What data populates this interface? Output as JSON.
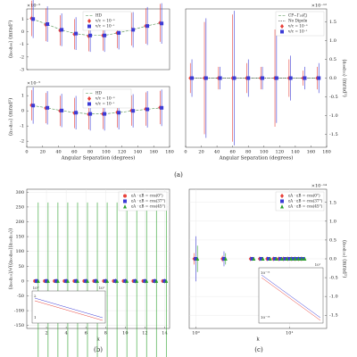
{
  "captions": [
    "(a)",
    "(b)",
    "(c)"
  ],
  "chart_data": [
    {
      "type": "scatter",
      "y_label": "⟨a₀₀a₀₀⟩ (mrad²)",
      "y_multiplier": "×10⁻⁵",
      "xlim": [
        0,
        180
      ],
      "ylim": [
        -3,
        1.8
      ],
      "yticks": [
        -3,
        -2,
        -1,
        0,
        1
      ],
      "y_axis_side": "left",
      "legend": "upper center",
      "x": [
        7,
        25,
        43,
        61,
        79,
        97,
        115,
        133,
        151,
        169
      ],
      "series": [
        {
          "name": "HD",
          "kind": "line",
          "color": "#4f8f4f",
          "values": [
            1.0,
            0.6,
            0.15,
            -0.15,
            -0.3,
            -0.3,
            -0.1,
            0.15,
            0.45,
            0.7
          ]
        },
        {
          "name": "v/c = 10⁻³",
          "color": "#e8413a",
          "marker": "diamond",
          "values": [
            1.05,
            0.55,
            0.1,
            -0.2,
            -0.35,
            -0.3,
            -0.1,
            0.2,
            0.45,
            0.7
          ],
          "errors": [
            1.4,
            1.3,
            1.2,
            1.2,
            1.2,
            1.2,
            1.2,
            1.3,
            1.4,
            1.5
          ]
        },
        {
          "name": "v/c = 10⁻¹",
          "color": "#3b3bd6",
          "marker": "square",
          "values": [
            1.0,
            0.6,
            0.15,
            -0.15,
            -0.3,
            -0.3,
            -0.1,
            0.15,
            0.45,
            0.65
          ],
          "errors": [
            1.5,
            1.4,
            1.3,
            1.3,
            1.3,
            1.3,
            1.3,
            1.4,
            1.5,
            1.6
          ]
        }
      ]
    },
    {
      "type": "scatter",
      "y_label": "⟨a₁₀a₁₀⟩ (mrad²)",
      "y_multiplier": "×10⁻⁵",
      "x_label": "Angular Separation (degrees)",
      "xlim": [
        0,
        180
      ],
      "xticks": [
        0,
        20,
        40,
        60,
        80,
        100,
        120,
        140,
        160,
        180
      ],
      "ylim": [
        -2.4,
        1.6
      ],
      "yticks": [
        -2,
        -1,
        0,
        1
      ],
      "y_axis_side": "left",
      "legend": "upper center",
      "x": [
        7,
        25,
        43,
        61,
        79,
        97,
        115,
        133,
        151,
        169
      ],
      "series": [
        {
          "name": "HD",
          "kind": "line",
          "color": "#4f8f4f",
          "values": [
            0.35,
            0.2,
            0.02,
            -0.12,
            -0.2,
            -0.2,
            -0.12,
            0.0,
            0.1,
            0.2
          ]
        },
        {
          "name": "v/c = 10⁻³",
          "color": "#e8413a",
          "marker": "diamond",
          "values": [
            0.37,
            0.18,
            0.0,
            -0.14,
            -0.22,
            -0.2,
            -0.1,
            0.02,
            0.12,
            0.22
          ],
          "errors": [
            1.0,
            1.0,
            1.0,
            1.0,
            1.0,
            1.0,
            1.0,
            1.0,
            1.1,
            1.1
          ]
        },
        {
          "name": "v/c = 10⁻¹",
          "color": "#3b3bd6",
          "marker": "square",
          "values": [
            0.35,
            0.2,
            0.02,
            -0.12,
            -0.2,
            -0.2,
            -0.12,
            0.0,
            0.1,
            0.2
          ],
          "errors": [
            1.2,
            1.1,
            1.1,
            1.1,
            1.1,
            1.1,
            1.1,
            1.1,
            1.2,
            1.2
          ]
        }
      ]
    },
    {
      "type": "scatter",
      "y_label": "⟨a₀₀a₁₀⟩ (mrad²)",
      "y_multiplier": "×10⁻¹²",
      "x_label": "Angular Separation (degrees)",
      "xlim": [
        0,
        180
      ],
      "xticks": [
        0,
        20,
        40,
        60,
        80,
        100,
        120,
        140,
        160,
        180
      ],
      "ylim": [
        -1.85,
        1.85
      ],
      "yticks": [
        -1.5,
        {
          "value": -1,
          "label": "-1.0"
        },
        -0.5,
        {
          "value": 0,
          "label": "0.0"
        },
        0.5,
        {
          "value": 1,
          "label": "1.0"
        },
        1.5
      ],
      "y_axis_side": "right",
      "legend": "upper right",
      "x": [
        7,
        25,
        43,
        61,
        79,
        97,
        115,
        133,
        151,
        169
      ],
      "series": [
        {
          "name": "CP−Γ₁₀(ζ)",
          "kind": "line",
          "color": "#4f8f4f",
          "values": [
            0,
            0,
            0,
            0,
            0,
            0,
            0,
            0,
            0,
            0
          ]
        },
        {
          "name": "No Dipole",
          "kind": "line",
          "color": "#222222",
          "values": [
            0,
            0,
            0,
            0,
            0,
            0,
            0,
            0,
            0,
            0
          ]
        },
        {
          "name": "v/c = 10⁻³",
          "color": "#e8413a",
          "marker": "diamond",
          "values": [
            0,
            0,
            0,
            0,
            0,
            0,
            0,
            0,
            0,
            0
          ],
          "errors": [
            0.4,
            1.5,
            0.3,
            1.7,
            0.4,
            0.3,
            1.3,
            0.5,
            0.2,
            0.3
          ]
        },
        {
          "name": "v/c = 10⁻¹",
          "color": "#3b3bd6",
          "marker": "square",
          "values": [
            0,
            0,
            0,
            0,
            0,
            0,
            0,
            0,
            0,
            0
          ],
          "errors": [
            0.5,
            1.6,
            0.3,
            1.8,
            0.5,
            0.3,
            1.2,
            0.6,
            0.3,
            0.4
          ]
        }
      ]
    },
    {
      "type": "scatter",
      "y_label": "⟨a₀₀a₁₀⟩/√(⟨a₀₀a₀₀⟩⟨a₁₀a₁₀⟩)",
      "x_label": "k",
      "xlim": [
        0,
        14.5
      ],
      "xticks": [
        2,
        4,
        6,
        8,
        10,
        12,
        14
      ],
      "ylim": [
        -160,
        310
      ],
      "yticks": [
        -150,
        -100,
        -50,
        0,
        50,
        100,
        150,
        200,
        250,
        300
      ],
      "y_axis_side": "left",
      "legend": "upper right",
      "grid": true,
      "x": [
        1,
        2,
        3,
        4,
        5,
        6,
        7,
        8,
        9,
        10,
        11,
        12,
        13,
        14
      ],
      "inset": {
        "xtick_labels": [
          "10⁰",
          "10¹"
        ],
        "ytick_labels": [
          "2",
          "1"
        ]
      },
      "series": [
        {
          "name": "εA · εB = cos(0°)",
          "color": "#e8413a",
          "marker": "circle",
          "values": [
            0,
            0,
            0,
            0,
            0,
            0,
            0,
            0,
            0,
            0,
            0,
            0,
            0,
            0
          ],
          "errors": [
            4,
            4,
            4,
            4,
            4,
            4,
            4,
            4,
            4,
            4,
            4,
            4,
            4,
            4
          ]
        },
        {
          "name": "εA · εB = cos(37°)",
          "color": "#3b3bd6",
          "marker": "square",
          "values": [
            0,
            0,
            0,
            0,
            0,
            0,
            0,
            0,
            0,
            0,
            0,
            0,
            0,
            0
          ],
          "errors": [
            8,
            8,
            8,
            8,
            8,
            8,
            8,
            8,
            8,
            8,
            8,
            8,
            8,
            8
          ]
        },
        {
          "name": "εA · εB = cos(45°)",
          "color": "#2ca02c",
          "marker": "triangle",
          "values": [
            0,
            0,
            0,
            0,
            0,
            0,
            0,
            0,
            0,
            0,
            0,
            0,
            0,
            0
          ],
          "errors": [
            265,
            265,
            265,
            265,
            265,
            265,
            265,
            265,
            265,
            265,
            265,
            265,
            265,
            265
          ]
        }
      ]
    },
    {
      "type": "scatter",
      "y_label": "⟨a₀₀a₁₀⟩ (mrad²)",
      "y_multiplier": "×10⁻¹⁴",
      "x_label": "k",
      "xscale": "log",
      "xlim": [
        0.85,
        25
      ],
      "xticks": [
        {
          "value": 1,
          "label": "10⁰"
        },
        {
          "value": 10,
          "label": "10¹"
        }
      ],
      "ylim": [
        -1.85,
        1.85
      ],
      "yticks": [
        -1.5,
        {
          "value": -1,
          "label": "-1.0"
        },
        -0.5,
        {
          "value": 0,
          "label": "0.0"
        },
        0.5,
        {
          "value": 1,
          "label": "1.0"
        },
        1.5
      ],
      "y_axis_side": "right",
      "legend": "upper right",
      "grid": true,
      "x": [
        1,
        2,
        4,
        5,
        6,
        7,
        8,
        9,
        10,
        11,
        12,
        13,
        14
      ],
      "inset": {
        "xtick_labels": [
          "10¹"
        ],
        "ytick_labels": [
          "10⁻¹²",
          "10⁻¹³"
        ]
      },
      "series": [
        {
          "name": "εA · εB = cos(0°)",
          "color": "#e8413a",
          "marker": "diamond",
          "values": [
            0,
            0,
            0,
            0,
            0,
            0,
            0,
            0,
            0,
            0,
            0,
            0,
            0
          ],
          "errors": [
            0.15,
            0.08,
            0.03,
            0.03,
            0.02,
            0.02,
            0.02,
            0.02,
            0.02,
            0.02,
            0.02,
            0.02,
            0.02
          ]
        },
        {
          "name": "εA · εB = cos(37°)",
          "color": "#3b3bd6",
          "marker": "square",
          "values": [
            0,
            0,
            0,
            0,
            0,
            0,
            0,
            0,
            0,
            0,
            0,
            0,
            0
          ],
          "errors": [
            0.6,
            0.2,
            0.05,
            0.05,
            0.04,
            0.04,
            0.04,
            0.03,
            0.03,
            0.03,
            0.03,
            0.03,
            0.03
          ]
        },
        {
          "name": "εA · εB = cos(45°)",
          "color": "#2ca02c",
          "marker": "triangle",
          "values": [
            0,
            0,
            0,
            0,
            0,
            0,
            0,
            0,
            0,
            0,
            0,
            0,
            0
          ],
          "errors": [
            0.35,
            0.15,
            0.04,
            0.04,
            0.03,
            0.03,
            0.03,
            0.03,
            0.03,
            0.03,
            0.03,
            0.03,
            0.03
          ]
        }
      ]
    }
  ]
}
